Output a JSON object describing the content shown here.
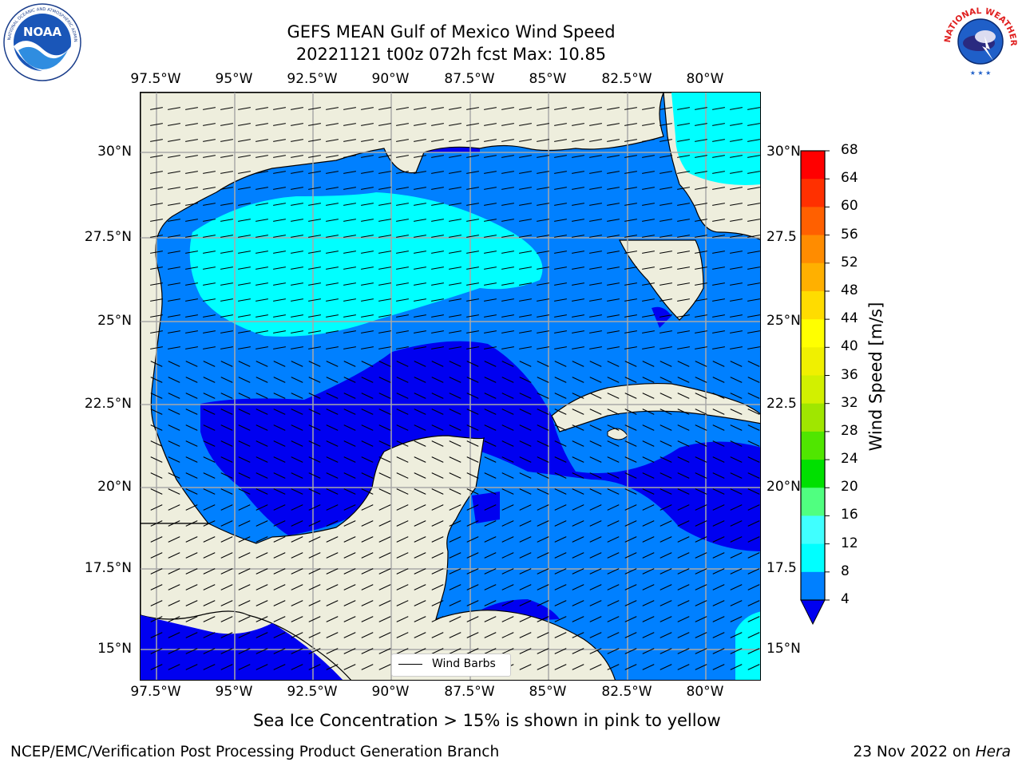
{
  "header": {
    "title_line1": "GEFS MEAN Gulf of Mexico Wind Speed",
    "title_line2": "20221121 t00z 072h fcst   Max: 10.85"
  },
  "logos": {
    "noara": "NOAA",
    "noaa_ring": "NATIONAL OCEANIC AND ATMOSPHERIC ADMINISTRATION · U.S. DEPARTMENT OF COMMERCE",
    "nws_ring": "NATIONAL WEATHER SERVICE"
  },
  "map": {
    "lon_labels": [
      "97.5°W",
      "95°W",
      "92.5°W",
      "90°W",
      "87.5°W",
      "85°W",
      "82.5°W",
      "80°W"
    ],
    "lat_labels_left": [
      "30°N",
      "27.5°N",
      "25°N",
      "22.5°N",
      "20°N",
      "17.5°N",
      "15°N"
    ],
    "lat_labels_right": [
      "30°N",
      "27.5",
      "25°N",
      "22.5",
      "20°N",
      "17.5",
      "15°N"
    ],
    "legend_label": "Wind Barbs",
    "colors": {
      "land": "#eeeedd",
      "band_4_8": "#0080ff",
      "band_0_4": "#0000f0",
      "band_8_12": "#00ffff",
      "band_12_16": "#40ffff"
    }
  },
  "colorbar": {
    "label": "Wind Speed [m/s]",
    "ticks": [
      "68",
      "64",
      "60",
      "56",
      "52",
      "48",
      "44",
      "40",
      "36",
      "32",
      "28",
      "24",
      "20",
      "16",
      "12",
      "8",
      "4"
    ],
    "colors": [
      "#ff0000",
      "#ff2800",
      "#ff5000",
      "#ff7800",
      "#ff9600",
      "#ffb400",
      "#ffdc00",
      "#fff000",
      "#f0f000",
      "#d2f000",
      "#a0f000",
      "#50e600",
      "#00e600",
      "#00f000",
      "#50ff80",
      "#a0ffff",
      "#40ffff",
      "#00ffff",
      "#0080ff",
      "#0000f0"
    ]
  },
  "caption": "Sea Ice Concentration > 15% is shown in pink to yellow",
  "footer": {
    "left": "NCEP/EMC/Verification Post Processing Product Generation Branch",
    "right_date": "23 Nov 2022 on ",
    "right_machine": "Hera"
  }
}
